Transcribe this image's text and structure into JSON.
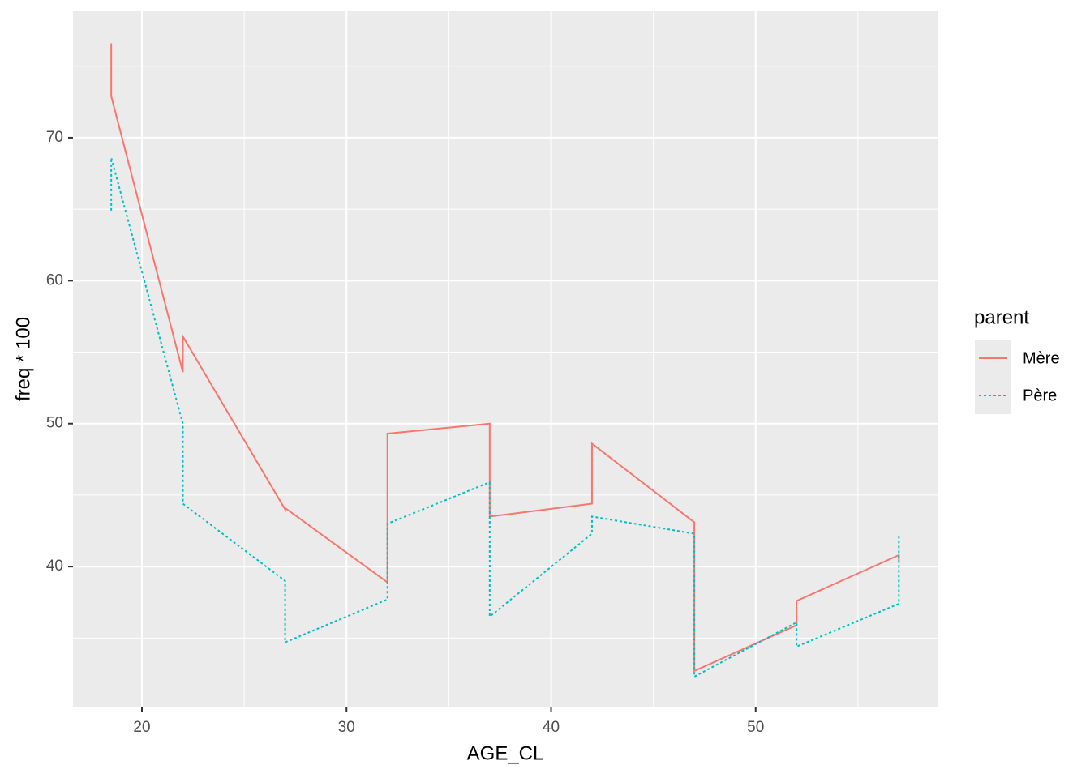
{
  "chart_data": {
    "type": "line",
    "x_label": "AGE_CL",
    "y_label": "freq * 100",
    "x": [
      18.5,
      18.5,
      22,
      22,
      27,
      27,
      32,
      32,
      37,
      37,
      42,
      42,
      47,
      47,
      52,
      52,
      57,
      57
    ],
    "series": [
      {
        "name": "Mère",
        "color": "#F8766D",
        "linetype": "solid",
        "values": [
          76.6,
          72.9,
          53.6,
          56.1,
          44.0,
          44.1,
          38.9,
          49.3,
          50.0,
          43.5,
          44.4,
          48.6,
          43.1,
          32.7,
          35.9,
          37.6,
          40.8,
          40.3
        ]
      },
      {
        "name": "Père",
        "color": "#00BFC4",
        "linetype": "dotted",
        "values": [
          64.9,
          68.6,
          50.0,
          44.4,
          39.0,
          34.7,
          37.7,
          43.0,
          45.9,
          36.5,
          42.3,
          43.5,
          42.3,
          32.3,
          36.1,
          34.4,
          37.4,
          42.1
        ]
      }
    ],
    "xlim": [
      16.63,
      58.93
    ],
    "xticks": [
      20,
      30,
      40,
      50
    ],
    "x_minor_grid": [
      25,
      35,
      45,
      55
    ],
    "ylim": [
      30.2,
      78.84
    ],
    "yticks": [
      40,
      50,
      60,
      70
    ],
    "y_minor_grid": [
      35,
      45,
      55,
      65,
      75
    ],
    "grid": true,
    "legend_title": "parent",
    "legend": "right"
  }
}
